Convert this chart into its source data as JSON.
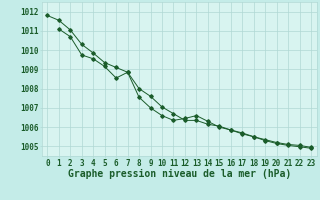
{
  "title": "Graphe pression niveau de la mer (hPa)",
  "background_color": "#c4ece8",
  "plot_bg_color": "#d8f4f0",
  "grid_color": "#b0d8d4",
  "line_color": "#1a5c2a",
  "marker_color": "#1a5c2a",
  "xlim": [
    -0.5,
    23.5
  ],
  "ylim": [
    1004.5,
    1012.5
  ],
  "yticks": [
    1005,
    1006,
    1007,
    1008,
    1009,
    1010,
    1011,
    1012
  ],
  "xticks": [
    0,
    1,
    2,
    3,
    4,
    5,
    6,
    7,
    8,
    9,
    10,
    11,
    12,
    13,
    14,
    15,
    16,
    17,
    18,
    19,
    20,
    21,
    22,
    23
  ],
  "series1_x": [
    0,
    1,
    2,
    3,
    4,
    5,
    6,
    7,
    8,
    9,
    10,
    11,
    12,
    13,
    14,
    15,
    16,
    17,
    18,
    19,
    20,
    21,
    22,
    23
  ],
  "series1_y": [
    1011.8,
    1011.55,
    1011.05,
    1010.3,
    1009.85,
    1009.35,
    1009.1,
    1008.85,
    1008.0,
    1007.6,
    1007.05,
    1006.7,
    1006.35,
    1006.35,
    1006.15,
    1006.05,
    1005.85,
    1005.7,
    1005.5,
    1005.35,
    1005.2,
    1005.1,
    1005.05,
    1004.95
  ],
  "series2_x": [
    1,
    2,
    3,
    4,
    5,
    6,
    7,
    8,
    9,
    10,
    11,
    12,
    13,
    14,
    15,
    16,
    17,
    18,
    19,
    20,
    21,
    22,
    23
  ],
  "series2_y": [
    1011.1,
    1010.7,
    1009.75,
    1009.55,
    1009.15,
    1008.55,
    1008.85,
    1007.55,
    1007.0,
    1006.6,
    1006.35,
    1006.45,
    1006.6,
    1006.3,
    1006.0,
    1005.85,
    1005.65,
    1005.5,
    1005.3,
    1005.15,
    1005.05,
    1004.98,
    1004.9
  ],
  "tick_fontsize": 5.5,
  "xlabel_fontsize": 7.0
}
